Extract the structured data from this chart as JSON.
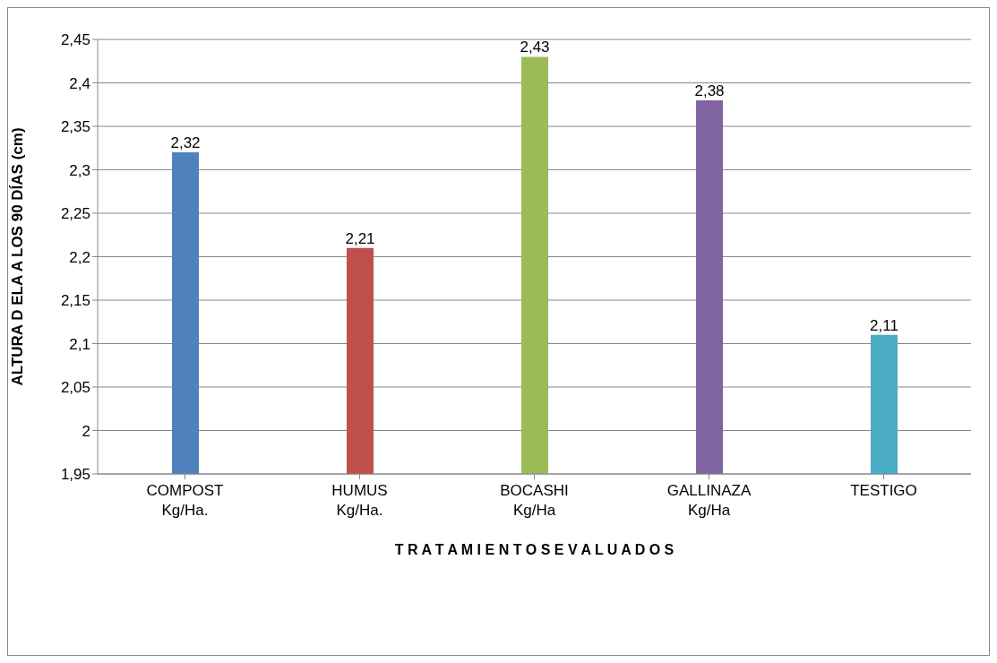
{
  "chart_data": {
    "type": "bar",
    "xlabel": "T R A T A M I E N T O S     E V A L U A D O S",
    "ylabel": "ALTURA D ELA A LOS 90 DÍAS (cm)",
    "categories": [
      "COMPOST Kg/Ha.",
      "HUMUS Kg/Ha.",
      "BOCASHI Kg/Ha",
      "GALLINAZA Kg/Ha",
      "TESTIGO"
    ],
    "values": [
      2.32,
      2.21,
      2.43,
      2.38,
      2.11
    ],
    "colors": [
      "#4f81bd",
      "#c0504d",
      "#9bbb59",
      "#8064a2",
      "#4bacc6"
    ],
    "value_labels": [
      "2,32",
      "2,21",
      "2,43",
      "2,38",
      "2,11"
    ],
    "ylim": [
      1.95,
      2.45
    ],
    "yticks": [
      {
        "value": 1.95,
        "label": "1,95"
      },
      {
        "value": 2,
        "label": "2"
      },
      {
        "value": 2.05,
        "label": "2,05"
      },
      {
        "value": 2.1,
        "label": "2,1"
      },
      {
        "value": 2.15,
        "label": "2,15"
      },
      {
        "value": 2.2,
        "label": "2,2"
      },
      {
        "value": 2.25,
        "label": "2,25"
      },
      {
        "value": 2.3,
        "label": "2,3"
      },
      {
        "value": 2.35,
        "label": "2,35"
      },
      {
        "value": 2.4,
        "label": "2,4"
      },
      {
        "value": 2.45,
        "label": "2,45"
      }
    ],
    "grid": "y"
  }
}
